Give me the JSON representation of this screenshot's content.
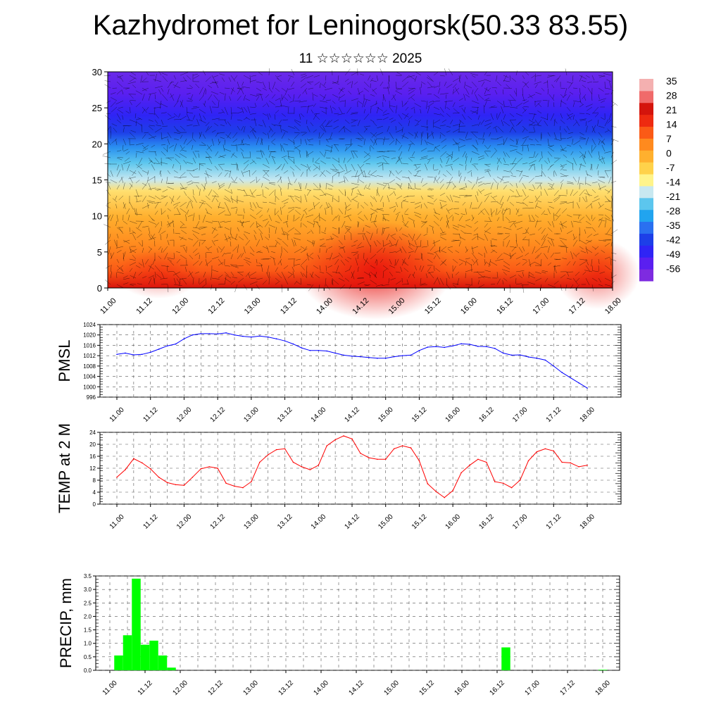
{
  "title": "Kazhydromet for Leninogorsk(50.33 83.55)",
  "subtitle": "11 ☆☆☆☆☆☆ 2025",
  "time_labels": [
    "11.00",
    "11.12",
    "12.00",
    "12.12",
    "13.00",
    "13.12",
    "14.00",
    "14.12",
    "15.00",
    "15.12",
    "16.00",
    "16.12",
    "17.00",
    "17.12",
    "18.00"
  ],
  "colors": {
    "pmsl_line": "#0000ff",
    "temp_line": "#ff0000",
    "precip_bar": "#00ff00",
    "palette": [
      "#7e2be0",
      "#5a1ff0",
      "#2f24f5",
      "#1d3fe8",
      "#2a70f0",
      "#21a4ef",
      "#5cc6ee",
      "#c8e8f0",
      "#fff48a",
      "#ffd24a",
      "#ffb02e",
      "#ff8a1e",
      "#fb5a16",
      "#ee2a10",
      "#d4140c",
      "#f06a6a",
      "#f4b0b0"
    ]
  },
  "chart_data": [
    {
      "type": "heatmap",
      "name": "upper-air",
      "x": [
        "11.00",
        "11.12",
        "12.00",
        "12.12",
        "13.00",
        "13.12",
        "14.00",
        "14.12",
        "15.00",
        "15.12",
        "16.00",
        "16.12",
        "17.00",
        "17.12",
        "18.00"
      ],
      "ylabel": "",
      "ylim": [
        0,
        30
      ],
      "yticks": [
        0,
        5,
        10,
        15,
        20,
        25,
        30
      ],
      "colorbar_labels": [
        "35",
        "28",
        "21",
        "14",
        "7",
        "0",
        "-7",
        "-14",
        "-21",
        "-28",
        "-35",
        "-42",
        "-49",
        "-56"
      ],
      "values_approx_degC_by_level": {
        "0": 18,
        "5": 14,
        "10": 9,
        "15": -5,
        "18": -20,
        "20": -35,
        "22": -48,
        "25": -56,
        "30": -56
      },
      "warm_core_x": "14.12"
    },
    {
      "type": "line",
      "name": "pmsl",
      "ylabel": "PMSL",
      "ylim": [
        996,
        1024
      ],
      "yticks": [
        996,
        1000,
        1004,
        1008,
        1012,
        1016,
        1020,
        1024
      ],
      "x": [
        "11.00",
        "11.03",
        "11.06",
        "11.09",
        "11.12",
        "11.15",
        "11.18",
        "11.21",
        "12.00",
        "12.03",
        "12.06",
        "12.09",
        "12.12",
        "12.15",
        "12.18",
        "12.21",
        "13.00",
        "13.03",
        "13.06",
        "13.09",
        "13.12",
        "13.15",
        "13.18",
        "13.21",
        "14.00",
        "14.03",
        "14.06",
        "14.09",
        "14.12",
        "14.15",
        "14.18",
        "14.21",
        "15.00",
        "15.03",
        "15.06",
        "15.09",
        "15.12",
        "15.15",
        "15.18",
        "15.21",
        "16.00",
        "16.03",
        "16.06",
        "16.09",
        "16.12",
        "16.15",
        "16.18",
        "16.21",
        "17.00",
        "17.03",
        "17.06",
        "17.09",
        "17.12",
        "17.15",
        "17.18",
        "17.21",
        "18.00"
      ],
      "values": [
        1012.5,
        1013,
        1012.3,
        1012.5,
        1013.3,
        1014.5,
        1015.8,
        1016.5,
        1018.5,
        1020,
        1020.5,
        1020.5,
        1020.4,
        1020.8,
        1020,
        1019.5,
        1019.2,
        1019.6,
        1019.2,
        1018.5,
        1017.7,
        1016.5,
        1015,
        1014,
        1014,
        1013.8,
        1013,
        1012.2,
        1011.8,
        1011.6,
        1011.3,
        1011,
        1011,
        1011.6,
        1012,
        1012.2,
        1014,
        1015.3,
        1015.5,
        1015.2,
        1015.8,
        1016.6,
        1016.4,
        1015.6,
        1015.5,
        1014.8,
        1013,
        1012.2,
        1012.3,
        1011.5,
        1011,
        1010.3,
        1008,
        1005.5,
        1003.5,
        1001.5,
        999.5
      ]
    },
    {
      "type": "line",
      "name": "temp",
      "ylabel": "TEMP at 2 M",
      "ylim": [
        0,
        24
      ],
      "yticks": [
        0,
        4,
        8,
        12,
        16,
        20,
        24
      ],
      "x": [
        "11.00",
        "11.03",
        "11.06",
        "11.09",
        "11.12",
        "11.15",
        "11.18",
        "11.21",
        "12.00",
        "12.03",
        "12.06",
        "12.09",
        "12.12",
        "12.15",
        "12.18",
        "12.21",
        "13.00",
        "13.03",
        "13.06",
        "13.09",
        "13.12",
        "13.15",
        "13.18",
        "13.21",
        "14.00",
        "14.03",
        "14.06",
        "14.09",
        "14.12",
        "14.15",
        "14.18",
        "14.21",
        "15.00",
        "15.03",
        "15.06",
        "15.09",
        "15.12",
        "15.15",
        "15.18",
        "15.21",
        "16.00",
        "16.03",
        "16.06",
        "16.09",
        "16.12",
        "16.15",
        "16.18",
        "16.21",
        "17.00",
        "17.03",
        "17.06",
        "17.09",
        "17.12",
        "17.15",
        "17.18",
        "17.21",
        "18.00"
      ],
      "values": [
        9,
        11.5,
        15.2,
        13.8,
        11.8,
        9,
        7.2,
        6.5,
        6.3,
        9,
        11.8,
        12.5,
        12,
        7,
        6,
        5.5,
        7.5,
        14,
        16.5,
        18.2,
        18.5,
        14,
        12.5,
        11.5,
        13,
        19.5,
        21.5,
        22.8,
        21.8,
        17,
        15.5,
        15,
        15,
        18.5,
        19.5,
        18.8,
        14.5,
        6.8,
        4.2,
        2.2,
        4.5,
        10.5,
        13,
        15,
        14,
        7.5,
        7,
        5.5,
        8,
        14.5,
        17.5,
        18.5,
        17.8,
        14,
        13.8,
        12.5,
        13
      ]
    },
    {
      "type": "bar",
      "name": "precip",
      "ylabel": "PRECIP, mm",
      "ylim": [
        0,
        3.5
      ],
      "yticks": [
        0.0,
        0.5,
        1.0,
        1.5,
        2.0,
        2.5,
        3.0,
        3.5
      ],
      "x": [
        "11.00",
        "11.03",
        "11.06",
        "11.09",
        "11.12",
        "11.15",
        "11.18",
        "11.21",
        "12.00",
        "12.03",
        "12.06",
        "12.09",
        "12.12",
        "12.15",
        "12.18",
        "12.21",
        "13.00",
        "13.03",
        "13.06",
        "13.09",
        "13.12",
        "13.15",
        "13.18",
        "13.21",
        "14.00",
        "14.03",
        "14.06",
        "14.09",
        "14.12",
        "14.15",
        "14.18",
        "14.21",
        "15.00",
        "15.03",
        "15.06",
        "15.09",
        "15.12",
        "15.15",
        "15.18",
        "15.21",
        "16.00",
        "16.03",
        "16.06",
        "16.09",
        "16.12",
        "16.15",
        "16.18",
        "16.21",
        "17.00",
        "17.03",
        "17.06",
        "17.09",
        "17.12",
        "17.15",
        "17.18",
        "17.21",
        "18.00"
      ],
      "values": [
        0,
        0.55,
        1.3,
        3.4,
        0.95,
        1.1,
        0.55,
        0.1,
        0,
        0,
        0,
        0,
        0,
        0,
        0,
        0,
        0,
        0,
        0,
        0,
        0,
        0,
        0,
        0,
        0,
        0,
        0,
        0,
        0,
        0,
        0,
        0,
        0,
        0,
        0,
        0,
        0,
        0,
        0,
        0,
        0,
        0,
        0,
        0,
        0,
        0.85,
        0,
        0,
        0,
        0,
        0,
        0,
        0,
        0,
        0,
        0,
        0.02
      ]
    }
  ]
}
